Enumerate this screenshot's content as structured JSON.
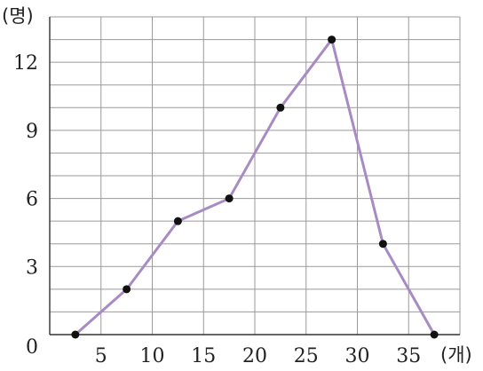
{
  "chart_data": {
    "type": "line",
    "title": "",
    "xlabel": "(개)",
    "ylabel": "(명)",
    "x_tick_labels": [
      "5",
      "10",
      "15",
      "20",
      "25",
      "30",
      "35"
    ],
    "y_tick_labels": [
      "0",
      "3",
      "6",
      "9",
      "12"
    ],
    "x": [
      2.5,
      7.5,
      12.5,
      17.5,
      22.5,
      27.5,
      32.5,
      37.5
    ],
    "y": [
      0,
      2,
      5,
      6,
      10,
      13,
      4,
      0
    ],
    "xlim": [
      0,
      40
    ],
    "ylim": [
      0,
      14
    ],
    "grid": true,
    "colors": {
      "line": "#a98bc4",
      "point": "#111111",
      "grid": "#9a9a9a"
    }
  }
}
